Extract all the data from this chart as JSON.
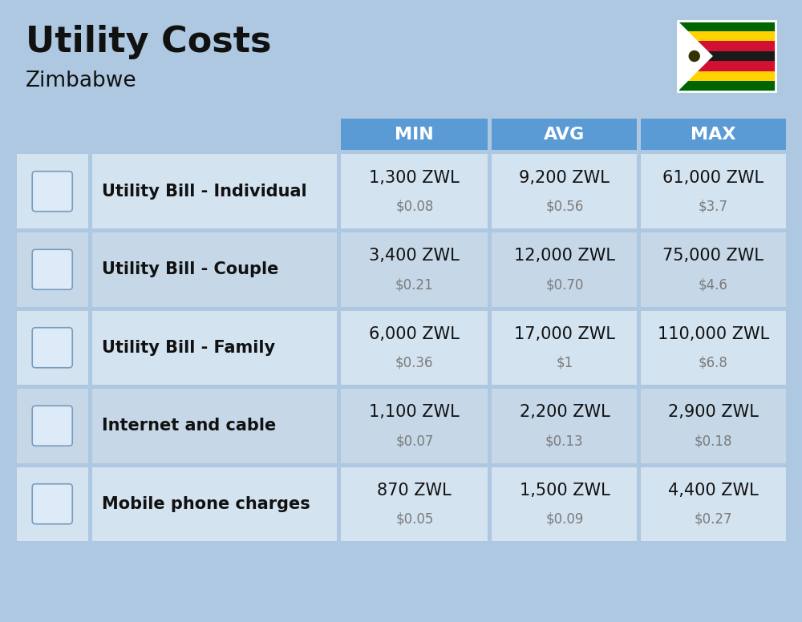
{
  "title": "Utility Costs",
  "subtitle": "Zimbabwe",
  "background_color": "#adc8e0",
  "header_bg_color": "#5b9bd5",
  "header_text_color": "#ffffff",
  "cell_border_color": "#ffffff",
  "rows": [
    {
      "label": "Utility Bill - Individual",
      "min_zwl": "1,300 ZWL",
      "min_usd": "$0.08",
      "avg_zwl": "9,200 ZWL",
      "avg_usd": "$0.56",
      "max_zwl": "61,000 ZWL",
      "max_usd": "$3.7"
    },
    {
      "label": "Utility Bill - Couple",
      "min_zwl": "3,400 ZWL",
      "min_usd": "$0.21",
      "avg_zwl": "12,000 ZWL",
      "avg_usd": "$0.70",
      "max_zwl": "75,000 ZWL",
      "max_usd": "$4.6"
    },
    {
      "label": "Utility Bill - Family",
      "min_zwl": "6,000 ZWL",
      "min_usd": "$0.36",
      "avg_zwl": "17,000 ZWL",
      "avg_usd": "$1",
      "max_zwl": "110,000 ZWL",
      "max_usd": "$6.8"
    },
    {
      "label": "Internet and cable",
      "min_zwl": "1,100 ZWL",
      "min_usd": "$0.07",
      "avg_zwl": "2,200 ZWL",
      "avg_usd": "$0.13",
      "max_zwl": "2,900 ZWL",
      "max_usd": "$0.18"
    },
    {
      "label": "Mobile phone charges",
      "min_zwl": "870 ZWL",
      "min_usd": "$0.05",
      "avg_zwl": "1,500 ZWL",
      "avg_usd": "$0.09",
      "max_zwl": "4,400 ZWL",
      "max_usd": "$0.27"
    }
  ],
  "zwl_fontsize": 15,
  "usd_fontsize": 12,
  "label_fontsize": 15,
  "header_fontsize": 16,
  "flag_stripes": [
    "#006400",
    "#FFD200",
    "#D21034",
    "#1a1a1a",
    "#D21034",
    "#FFD200",
    "#006400"
  ]
}
